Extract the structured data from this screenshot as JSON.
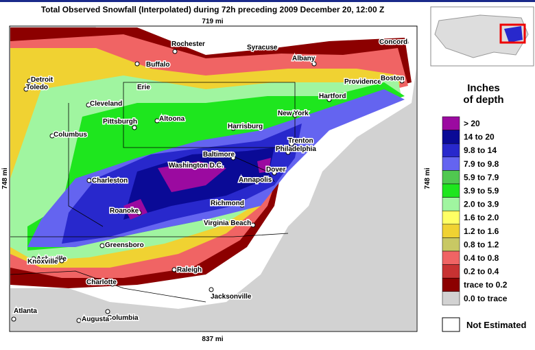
{
  "title": "Total Observed Snowfall (Interpolated) during 72h preceding 2009 December 20, 12:00 Z",
  "scale": {
    "top": "719 mi",
    "left": "748 mi",
    "right": "748 mi",
    "bottom": "837 mi"
  },
  "cities": [
    "Rochester",
    "Syracuse",
    "Concord",
    "Buffalo",
    "Albany",
    "Detroit",
    "Toledo",
    "Erie",
    "Providence",
    "Boston",
    "Hartford",
    "Cleveland",
    "Pittsburgh",
    "Altoona",
    "New York",
    "Harrisburg",
    "Columbus",
    "Trenton",
    "Philadelphia",
    "Baltimore",
    "Washington D.C.",
    "Dover",
    "Charleston",
    "Annapolis",
    "Richmond",
    "Roanoke",
    "Virginia Beach",
    "Greensboro",
    "Asheville",
    "Knoxville",
    "Raleigh",
    "Charlotte",
    "Jacksonville",
    "Atlanta",
    "Columbia",
    "Augusta"
  ],
  "legend": {
    "title": [
      "Inches",
      "of depth"
    ],
    "items": [
      {
        "label": "> 20",
        "color": "#9b0aa0"
      },
      {
        "label": "14 to 20",
        "color": "#0a0a96"
      },
      {
        "label": "9.8 to 14",
        "color": "#2828cc"
      },
      {
        "label": "7.9 to 9.8",
        "color": "#6464f0"
      },
      {
        "label": "5.9 to 7.9",
        "color": "#50c850"
      },
      {
        "label": "3.9 to 5.9",
        "color": "#1ee61e"
      },
      {
        "label": "2.0 to 3.9",
        "color": "#a0f5a0"
      },
      {
        "label": "1.6 to 2.0",
        "color": "#ffff64"
      },
      {
        "label": "1.2 to 1.6",
        "color": "#f0d232"
      },
      {
        "label": "0.8 to 1.2",
        "color": "#c8c864"
      },
      {
        "label": "0.4 to 0.8",
        "color": "#f06464"
      },
      {
        "label": "0.2 to 0.4",
        "color": "#c83232"
      },
      {
        "label": "trace to 0.2",
        "color": "#8c0000"
      },
      {
        "label": "0.0 to trace",
        "color": "#d2d2d2"
      }
    ],
    "not_estimated": "Not Estimated"
  }
}
